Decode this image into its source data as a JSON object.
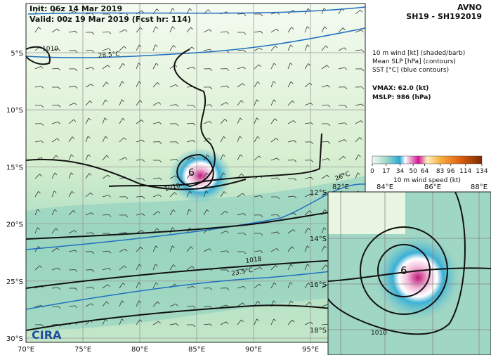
{
  "header": {
    "init": "Init:  06z 14 Mar 2019",
    "valid": "Valid: 00z 19 Mar 2019 (Fcst hr: 114)",
    "model": "AVNO",
    "storm": "SH19 - SH192019"
  },
  "legend": {
    "lines": [
      "10 m wind [kt] (shaded/barb)",
      "Mean SLP [hPa] (contours)",
      "SST [°C] (blue contours)"
    ],
    "vmax": "VMAX:  62.0 (kt)",
    "mslp": "MSLP:  986 (hPa)"
  },
  "colorbar": {
    "ticks": [
      0,
      17,
      34,
      50,
      64,
      83,
      96,
      114,
      134
    ],
    "label": "10 m wind speed (kt)"
  },
  "map": {
    "lat_labels": [
      "5°S",
      "10°S",
      "15°S",
      "20°S",
      "25°S",
      "30°S"
    ],
    "lon_labels": [
      "70°E",
      "75°E",
      "80°E",
      "85°E",
      "90°E",
      "95°E"
    ],
    "contour_labels": [
      "1010",
      "1010",
      "1018",
      "28.5°C",
      "26°C",
      "23.5°C"
    ],
    "logo": "CIRA"
  },
  "inset": {
    "lon_labels": [
      "82°E",
      "84°E",
      "86°E",
      "88°E"
    ],
    "lat_labels": [
      "12°S",
      "14°S",
      "16°S",
      "18°S"
    ],
    "contour_label": "1010"
  }
}
